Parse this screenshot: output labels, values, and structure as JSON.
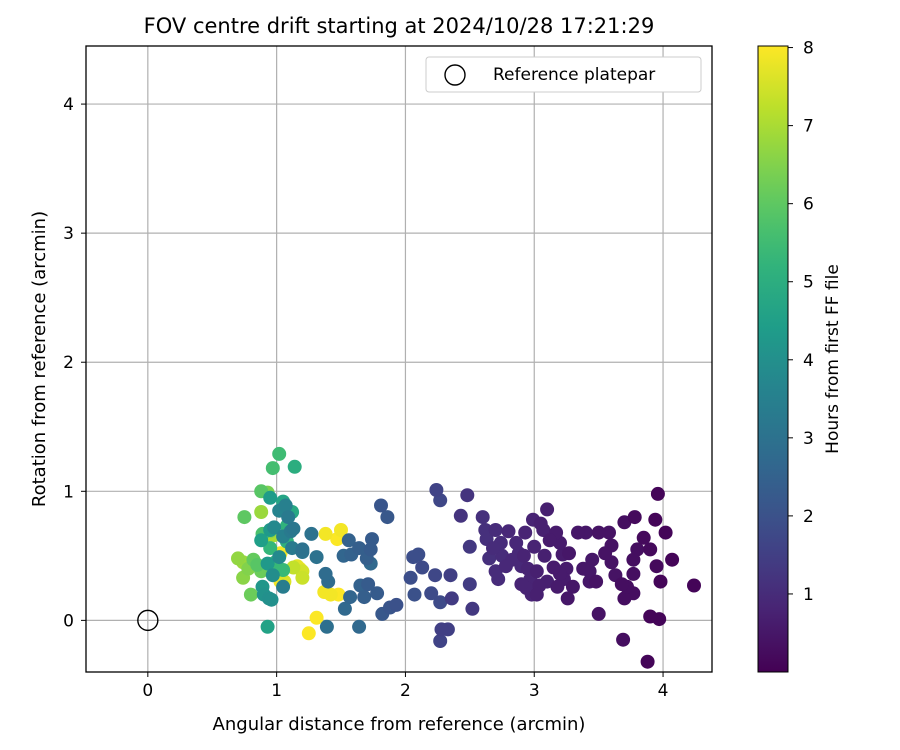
{
  "chart_data": {
    "type": "scatter",
    "title": "FOV centre drift starting at 2024/10/28 17:21:29",
    "xlabel": "Angular distance from reference (arcmin)",
    "ylabel": "Rotation from reference (arcmin)",
    "xlim": [
      -0.48,
      4.38
    ],
    "ylim": [
      -0.4,
      4.45
    ],
    "xticks": [
      0,
      1,
      2,
      3,
      4
    ],
    "yticks": [
      0,
      1,
      2,
      3,
      4
    ],
    "grid": true,
    "legend": {
      "placement": "top-right",
      "entries": [
        "Reference platepar"
      ]
    },
    "reference_point": {
      "label": "Reference platepar",
      "x": 0,
      "y": 0,
      "marker": "hollow-circle"
    },
    "colorbar": {
      "label": "Hours from first FF file",
      "colormap": "viridis",
      "range": [
        0,
        8.02
      ],
      "ticks": [
        1,
        2,
        3,
        4,
        5,
        6,
        7,
        8
      ]
    },
    "points": [
      [
        4.24,
        0.27,
        0.1
      ],
      [
        4.07,
        0.47,
        0.1
      ],
      [
        4.02,
        0.68,
        0.1
      ],
      [
        3.96,
        0.98,
        0.1
      ],
      [
        3.94,
        0.78,
        0.1
      ],
      [
        3.97,
        0.01,
        0.1
      ],
      [
        3.9,
        0.03,
        0.1
      ],
      [
        3.88,
        -0.32,
        0.1
      ],
      [
        3.98,
        0.3,
        0.1
      ],
      [
        3.95,
        0.42,
        0.2
      ],
      [
        3.9,
        0.55,
        0.2
      ],
      [
        3.85,
        0.64,
        0.2
      ],
      [
        3.8,
        0.55,
        0.3
      ],
      [
        3.78,
        0.8,
        0.2
      ],
      [
        3.77,
        0.47,
        0.3
      ],
      [
        3.77,
        0.36,
        0.3
      ],
      [
        3.77,
        0.21,
        0.3
      ],
      [
        3.7,
        0.76,
        0.3
      ],
      [
        3.69,
        -0.15,
        0.3
      ],
      [
        3.7,
        0.17,
        0.3
      ],
      [
        3.72,
        0.26,
        0.3
      ],
      [
        3.68,
        0.28,
        0.3
      ],
      [
        3.63,
        0.35,
        0.4
      ],
      [
        3.6,
        0.58,
        0.4
      ],
      [
        3.6,
        0.45,
        0.4
      ],
      [
        3.58,
        0.68,
        0.4
      ],
      [
        3.55,
        0.52,
        0.4
      ],
      [
        3.5,
        0.68,
        0.4
      ],
      [
        3.5,
        0.05,
        0.4
      ],
      [
        3.48,
        0.3,
        0.4
      ],
      [
        3.45,
        0.47,
        0.5
      ],
      [
        3.43,
        0.38,
        0.5
      ],
      [
        3.43,
        0.3,
        0.5
      ],
      [
        3.4,
        0.68,
        0.5
      ],
      [
        3.38,
        0.4,
        0.5
      ],
      [
        3.34,
        0.68,
        0.5
      ],
      [
        3.3,
        0.26,
        0.5
      ],
      [
        3.27,
        0.52,
        0.5
      ],
      [
        3.26,
        0.17,
        0.5
      ],
      [
        3.25,
        0.4,
        0.6
      ],
      [
        3.23,
        0.32,
        0.6
      ],
      [
        3.22,
        0.51,
        0.6
      ],
      [
        3.2,
        0.6,
        0.6
      ],
      [
        3.2,
        0.36,
        0.6
      ],
      [
        3.18,
        0.26,
        0.6
      ],
      [
        3.17,
        0.68,
        0.6
      ],
      [
        3.15,
        0.41,
        0.6
      ],
      [
        3.12,
        0.62,
        0.6
      ],
      [
        3.1,
        0.86,
        0.7
      ],
      [
        3.1,
        0.3,
        0.7
      ],
      [
        3.08,
        0.5,
        0.7
      ],
      [
        3.07,
        0.7,
        0.7
      ],
      [
        3.05,
        0.75,
        0.7
      ],
      [
        3.04,
        0.27,
        0.7
      ],
      [
        3.02,
        0.2,
        0.7
      ],
      [
        3.02,
        0.38,
        0.7
      ],
      [
        3.0,
        0.57,
        0.8
      ],
      [
        2.99,
        0.78,
        0.8
      ],
      [
        2.98,
        0.2,
        0.8
      ],
      [
        2.97,
        0.32,
        0.8
      ],
      [
        2.95,
        0.4,
        0.8
      ],
      [
        2.94,
        0.25,
        0.8
      ],
      [
        2.93,
        0.68,
        0.8
      ],
      [
        2.92,
        0.5,
        0.8
      ],
      [
        2.9,
        0.28,
        0.8
      ],
      [
        2.9,
        0.42,
        0.9
      ],
      [
        2.88,
        0.52,
        0.9
      ],
      [
        2.86,
        0.6,
        0.9
      ],
      [
        2.83,
        0.47,
        0.9
      ],
      [
        2.8,
        0.69,
        0.9
      ],
      [
        2.78,
        0.42,
        0.9
      ],
      [
        2.75,
        0.5,
        1.0
      ],
      [
        2.74,
        0.6,
        1.0
      ],
      [
        2.72,
        0.32,
        1.0
      ],
      [
        2.7,
        0.38,
        1.0
      ],
      [
        2.7,
        0.7,
        1.0
      ],
      [
        2.68,
        0.56,
        1.0
      ],
      [
        2.65,
        0.48,
        1.1
      ],
      [
        2.63,
        0.63,
        1.1
      ],
      [
        2.6,
        0.8,
        1.1
      ],
      [
        2.62,
        0.7,
        1.1
      ],
      [
        2.48,
        0.97,
        1.2
      ],
      [
        2.43,
        0.81,
        1.2
      ],
      [
        2.52,
        0.09,
        1.3
      ],
      [
        2.5,
        0.28,
        1.4
      ],
      [
        2.5,
        0.57,
        1.3
      ],
      [
        2.36,
        0.17,
        1.4
      ],
      [
        2.35,
        0.35,
        1.5
      ],
      [
        2.33,
        -0.07,
        1.5
      ],
      [
        2.28,
        -0.07,
        1.5
      ],
      [
        2.27,
        -0.16,
        1.6
      ],
      [
        2.24,
        1.01,
        1.6
      ],
      [
        2.27,
        0.93,
        1.7
      ],
      [
        2.23,
        0.35,
        1.7
      ],
      [
        2.2,
        0.21,
        1.8
      ],
      [
        2.27,
        0.14,
        1.8
      ],
      [
        2.13,
        0.41,
        1.8
      ],
      [
        2.1,
        0.51,
        1.9
      ],
      [
        2.06,
        0.49,
        1.9
      ],
      [
        2.04,
        0.33,
        1.9
      ],
      [
        2.07,
        0.2,
        2.0
      ],
      [
        1.93,
        0.12,
        2.0
      ],
      [
        1.88,
        0.1,
        2.1
      ],
      [
        1.81,
        0.89,
        2.1
      ],
      [
        1.86,
        0.8,
        2.2
      ],
      [
        1.82,
        0.05,
        2.2
      ],
      [
        1.78,
        0.21,
        2.3
      ],
      [
        1.74,
        0.63,
        2.3
      ],
      [
        1.73,
        0.55,
        2.3
      ],
      [
        1.71,
        0.28,
        2.3
      ],
      [
        1.7,
        0.48,
        2.4
      ],
      [
        1.68,
        0.18,
        2.4
      ],
      [
        1.64,
        0.56,
        2.4
      ],
      [
        1.65,
        0.27,
        2.5
      ],
      [
        1.58,
        0.51,
        2.5
      ],
      [
        1.56,
        0.62,
        2.5
      ],
      [
        1.57,
        0.18,
        2.6
      ],
      [
        1.52,
        0.5,
        2.6
      ],
      [
        1.53,
        0.09,
        2.7
      ],
      [
        1.64,
        -0.05,
        2.7
      ],
      [
        1.73,
        0.44,
        2.7
      ],
      [
        1.4,
        0.3,
        2.8
      ],
      [
        1.38,
        0.36,
        2.8
      ],
      [
        1.39,
        -0.05,
        2.9
      ],
      [
        1.27,
        0.67,
        3.0
      ],
      [
        1.31,
        0.49,
        3.0
      ],
      [
        1.2,
        0.55,
        3.0
      ],
      [
        1.2,
        0.53,
        3.1
      ],
      [
        1.13,
        0.71,
        3.2
      ],
      [
        1.11,
        0.69,
        3.3
      ],
      [
        1.09,
        0.8,
        3.3
      ],
      [
        1.12,
        0.56,
        3.3
      ],
      [
        1.05,
        0.26,
        3.4
      ],
      [
        1.07,
        0.89,
        3.5
      ],
      [
        1.05,
        0.65,
        3.5
      ],
      [
        1.02,
        0.85,
        3.6
      ],
      [
        1.02,
        0.49,
        3.8
      ],
      [
        0.98,
        0.72,
        3.8
      ],
      [
        0.97,
        0.35,
        3.9
      ],
      [
        0.94,
        0.17,
        4.0
      ],
      [
        0.96,
        0.16,
        4.0
      ],
      [
        0.9,
        0.2,
        4.1
      ],
      [
        0.89,
        0.26,
        4.2
      ],
      [
        0.93,
        0.44,
        4.3
      ],
      [
        0.95,
        0.7,
        4.3
      ],
      [
        0.95,
        0.95,
        4.4
      ],
      [
        0.88,
        0.62,
        4.5
      ],
      [
        0.93,
        -0.05,
        4.6
      ],
      [
        1.05,
        0.92,
        4.7
      ],
      [
        1.12,
        0.84,
        4.8
      ],
      [
        1.14,
        1.19,
        5.0
      ],
      [
        1.08,
        0.61,
        5.1
      ],
      [
        1.08,
        0.73,
        5.2
      ],
      [
        0.95,
        0.56,
        5.3
      ],
      [
        0.99,
        0.45,
        5.4
      ],
      [
        1.05,
        0.39,
        5.4
      ],
      [
        1.02,
        1.29,
        5.5
      ],
      [
        0.97,
        1.18,
        5.6
      ],
      [
        0.89,
        0.67,
        5.7
      ],
      [
        0.88,
        1.0,
        5.9
      ],
      [
        0.85,
        0.43,
        5.9
      ],
      [
        0.75,
        0.8,
        6.0
      ],
      [
        0.82,
        0.47,
        6.1
      ],
      [
        0.8,
        0.2,
        6.2
      ],
      [
        0.88,
        0.38,
        6.2
      ],
      [
        0.93,
        0.99,
        6.4
      ],
      [
        0.78,
        0.4,
        6.5
      ],
      [
        0.74,
        0.33,
        6.6
      ],
      [
        0.95,
        0.69,
        6.6
      ],
      [
        0.7,
        0.48,
        6.7
      ],
      [
        0.74,
        0.45,
        6.8
      ],
      [
        0.88,
        0.84,
        6.8
      ],
      [
        0.98,
        0.66,
        7.0
      ],
      [
        0.9,
        0.63,
        7.0
      ],
      [
        1.13,
        0.41,
        7.3
      ],
      [
        1.2,
        0.33,
        7.4
      ],
      [
        1.2,
        0.38,
        7.5
      ],
      [
        1.06,
        0.3,
        7.6
      ],
      [
        1.16,
        0.42,
        7.7
      ],
      [
        1.03,
        0.3,
        7.9
      ],
      [
        1.18,
        0.4,
        7.8
      ],
      [
        1.03,
        0.52,
        7.9
      ],
      [
        1.38,
        0.67,
        7.9
      ],
      [
        1.5,
        0.7,
        7.9
      ],
      [
        1.48,
        0.2,
        8.0
      ],
      [
        1.42,
        0.2,
        7.9
      ],
      [
        1.37,
        0.22,
        7.9
      ],
      [
        1.31,
        0.02,
        8.0
      ],
      [
        1.25,
        -0.1,
        8.0
      ],
      [
        1.47,
        0.63,
        8.0
      ]
    ]
  }
}
